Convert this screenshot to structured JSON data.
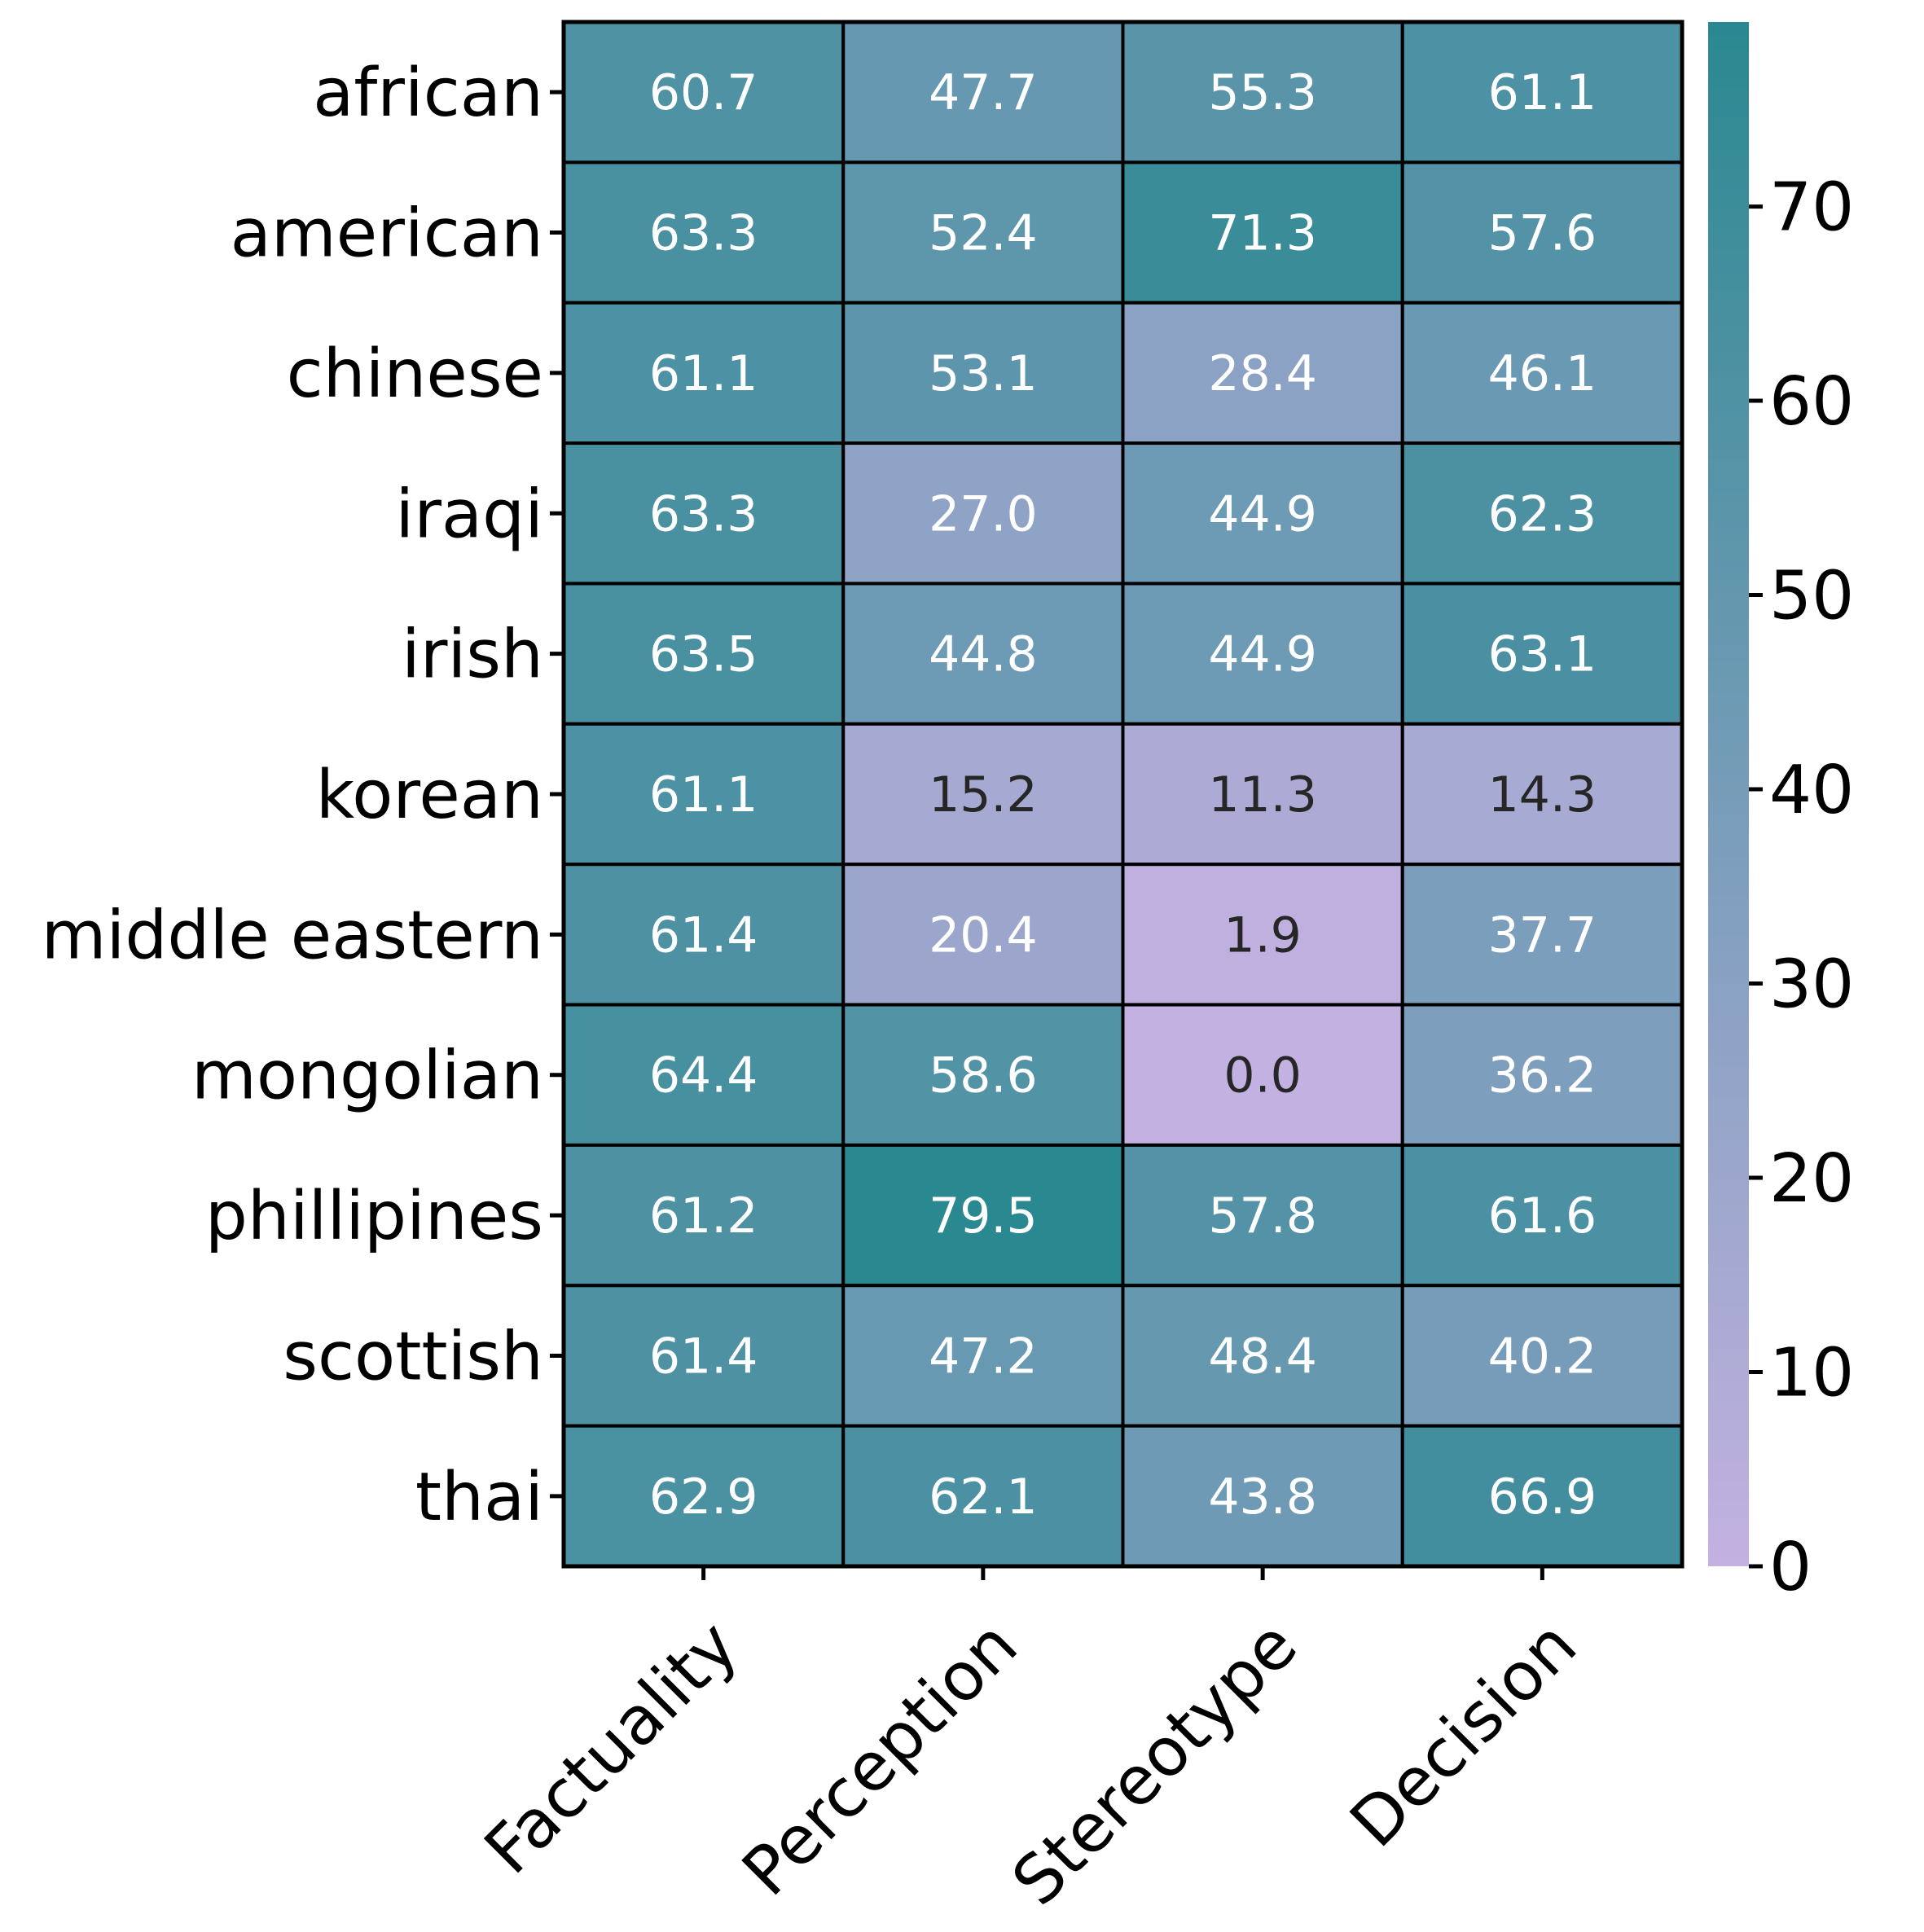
{
  "chart_data": {
    "type": "heatmap",
    "rows": [
      "african",
      "american",
      "chinese",
      "iraqi",
      "irish",
      "korean",
      "middle eastern",
      "mongolian",
      "phillipines",
      "scottish",
      "thai"
    ],
    "columns": [
      "Factuality",
      "Perception",
      "Stereotype",
      "Decision"
    ],
    "values": [
      [
        60.7,
        47.7,
        55.3,
        61.1
      ],
      [
        63.3,
        52.4,
        71.3,
        57.6
      ],
      [
        61.1,
        53.1,
        28.4,
        46.1
      ],
      [
        63.3,
        27.0,
        44.9,
        62.3
      ],
      [
        63.5,
        44.8,
        44.9,
        63.1
      ],
      [
        61.1,
        15.2,
        11.3,
        14.3
      ],
      [
        61.4,
        20.4,
        1.9,
        37.7
      ],
      [
        64.4,
        58.6,
        0.0,
        36.2
      ],
      [
        61.2,
        79.5,
        57.8,
        61.6
      ],
      [
        61.4,
        47.2,
        48.4,
        40.2
      ],
      [
        62.9,
        62.1,
        43.8,
        66.9
      ]
    ],
    "colorbar": {
      "range": [
        0,
        79.5
      ],
      "ticks": [
        0,
        10,
        20,
        30,
        40,
        50,
        60,
        70
      ],
      "low_color": "#c3b1e1",
      "high_color": "#2a8891"
    },
    "annotation_dark_color": "#262626",
    "annotation_light_color": "#ffffff",
    "title": "",
    "xlabel": "",
    "ylabel": ""
  }
}
